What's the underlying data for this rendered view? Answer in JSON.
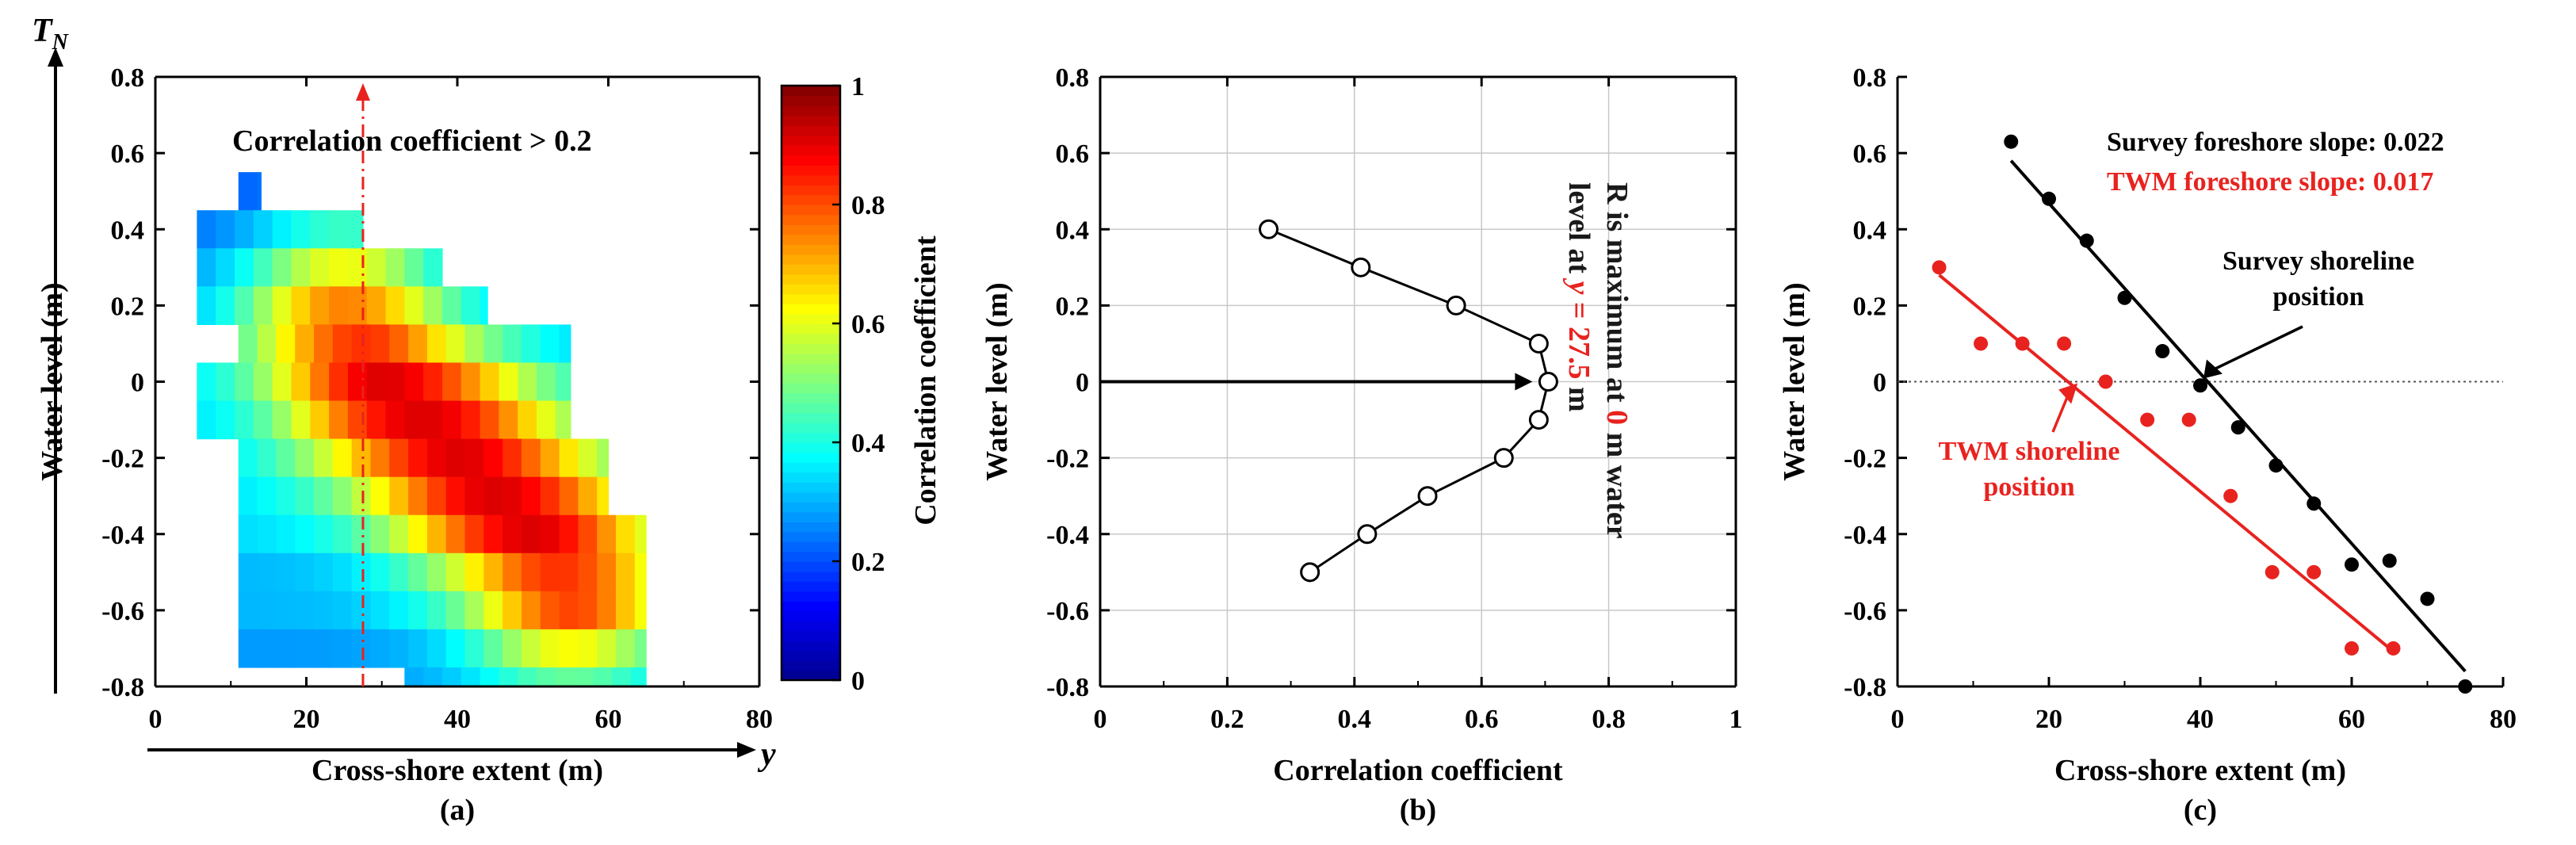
{
  "chart_data": [
    {
      "id": "a",
      "type": "heatmap",
      "panel_label": "(a)",
      "xlabel": "Cross-shore extent (m)",
      "ylabel": "Water level (m)",
      "x_symbol": "y",
      "y_symbol": "T_N",
      "xlim": [
        0,
        80
      ],
      "ylim": [
        -0.8,
        0.8
      ],
      "x_ticks": [
        "0",
        "20",
        "40",
        "60",
        "80"
      ],
      "y_ticks": [
        "0.8",
        "0.6",
        "0.4",
        "0.2",
        "0",
        "-0.2",
        "-0.4",
        "-0.6",
        "-0.8"
      ],
      "colorbar": {
        "label": "Correlation coefficient",
        "range": [
          0,
          1
        ],
        "ticks": [
          "1",
          "0.8",
          "0.6",
          "0.4",
          "0.2",
          "0"
        ],
        "colormap": "jet"
      },
      "annotation": "Correlation coefficient > 0.2",
      "marker_line_x": 27.5,
      "marker_line_color": "#e8231f",
      "ridge": [
        [
          25,
          0.2
        ],
        [
          30,
          0.0
        ],
        [
          38,
          -0.15
        ],
        [
          45,
          -0.3
        ],
        [
          50,
          -0.4
        ],
        [
          55,
          -0.55
        ]
      ],
      "grid": [
        {
          "level": 0.5,
          "x_start": 11,
          "x_end": 14,
          "mean": 0.3
        },
        {
          "level": 0.4,
          "x_start": 5.5,
          "x_end": 27.5,
          "mean": 0.35
        },
        {
          "level": 0.3,
          "x_start": 5.5,
          "x_end": 38,
          "mean": 0.4
        },
        {
          "level": 0.2,
          "x_start": 5.5,
          "x_end": 44,
          "mean": 0.45
        },
        {
          "level": 0.1,
          "x_start": 11,
          "x_end": 55,
          "mean": 0.5
        },
        {
          "level": 0.0,
          "x_start": 5.5,
          "x_end": 55,
          "mean": 0.55
        },
        {
          "level": -0.1,
          "x_start": 5.5,
          "x_end": 55,
          "mean": 0.55
        },
        {
          "level": -0.2,
          "x_start": 11,
          "x_end": 60,
          "mean": 0.55
        },
        {
          "level": -0.3,
          "x_start": 11,
          "x_end": 60,
          "mean": 0.55
        },
        {
          "level": -0.4,
          "x_start": 11,
          "x_end": 65,
          "mean": 0.55
        },
        {
          "level": -0.5,
          "x_start": 11,
          "x_end": 65,
          "mean": 0.5
        },
        {
          "level": -0.6,
          "x_start": 11,
          "x_end": 65,
          "mean": 0.5
        },
        {
          "level": -0.7,
          "x_start": 11,
          "x_end": 65,
          "mean": 0.45
        },
        {
          "level": -0.8,
          "x_start": 33,
          "x_end": 65,
          "mean": 0.45
        }
      ]
    },
    {
      "id": "b",
      "type": "line",
      "panel_label": "(b)",
      "xlabel": "Correlation coefficient",
      "ylabel": "Water level (m)",
      "xlim": [
        0,
        1
      ],
      "ylim": [
        -0.8,
        0.8
      ],
      "x_ticks": [
        "0",
        "0.2",
        "0.4",
        "0.6",
        "0.8",
        "1"
      ],
      "y_ticks": [
        "0.8",
        "0.6",
        "0.4",
        "0.2",
        "0",
        "-0.2",
        "-0.4",
        "-0.6",
        "-0.8"
      ],
      "grid": true,
      "series": [
        {
          "x": [
            0.265,
            0.41,
            0.56,
            0.69,
            0.705,
            0.69,
            0.635,
            0.515,
            0.42,
            0.33
          ],
          "y": [
            0.4,
            0.3,
            0.2,
            0.1,
            0.0,
            -0.1,
            -0.2,
            -0.3,
            -0.4,
            -0.5
          ]
        }
      ],
      "arrow": {
        "from": [
          0,
          0
        ],
        "to": [
          0.7,
          0
        ]
      },
      "annotation_lines": [
        [
          {
            "text": "R is maximum at ",
            "color": "#1a1a1a"
          },
          {
            "text": "0",
            "color": "#e8231f"
          },
          {
            "text": " m water",
            "color": "#1a1a1a"
          }
        ],
        [
          {
            "text": "level at ",
            "color": "#1a1a1a"
          },
          {
            "text": "y",
            "color": "#e8231f",
            "italic": true
          },
          {
            "text": " = 27.5",
            "color": "#e8231f"
          },
          {
            "text": " m",
            "color": "#1a1a1a"
          }
        ]
      ]
    },
    {
      "id": "c",
      "type": "scatter",
      "panel_label": "(c)",
      "xlabel": "Cross-shore extent (m)",
      "ylabel": "Water level (m)",
      "xlim": [
        0,
        80
      ],
      "ylim": [
        -0.8,
        0.8
      ],
      "x_ticks": [
        "0",
        "20",
        "40",
        "60",
        "80"
      ],
      "y_ticks": [
        "0.8",
        "0.6",
        "0.4",
        "0.2",
        "0",
        "-0.2",
        "-0.4",
        "-0.6",
        "-0.8"
      ],
      "zero_line": true,
      "series": [
        {
          "legend_text": "Survey foreshore slope: 0.022",
          "color": "#000000",
          "x": [
            15,
            20,
            25,
            30,
            35,
            40,
            45,
            50,
            55,
            60,
            65,
            70,
            75
          ],
          "y": [
            0.63,
            0.48,
            0.37,
            0.22,
            0.08,
            -0.01,
            -0.12,
            -0.22,
            -0.32,
            -0.48,
            -0.47,
            -0.57,
            -0.8
          ],
          "fit": {
            "x": [
              15,
              75
            ],
            "y": [
              0.58,
              -0.76
            ]
          },
          "shoreline_x": 40
        },
        {
          "legend_text": "TWM foreshore slope: 0.017",
          "color": "#e8231f",
          "x": [
            5.5,
            11,
            16.5,
            22,
            27.5,
            33,
            38.5,
            44,
            49.5,
            55,
            60,
            65.5
          ],
          "y": [
            0.3,
            0.1,
            0.1,
            0.1,
            0.0,
            -0.1,
            -0.1,
            -0.3,
            -0.5,
            -0.5,
            -0.7,
            -0.7
          ],
          "fit": {
            "x": [
              5.5,
              65
            ],
            "y": [
              0.28,
              -0.7
            ]
          },
          "shoreline_x": 24
        }
      ],
      "annotations": [
        {
          "lines": [
            "Survey shoreline",
            "position"
          ],
          "color": "#000000"
        },
        {
          "lines": [
            "TWM shoreline",
            "position"
          ],
          "color": "#e8231f"
        }
      ]
    }
  ]
}
